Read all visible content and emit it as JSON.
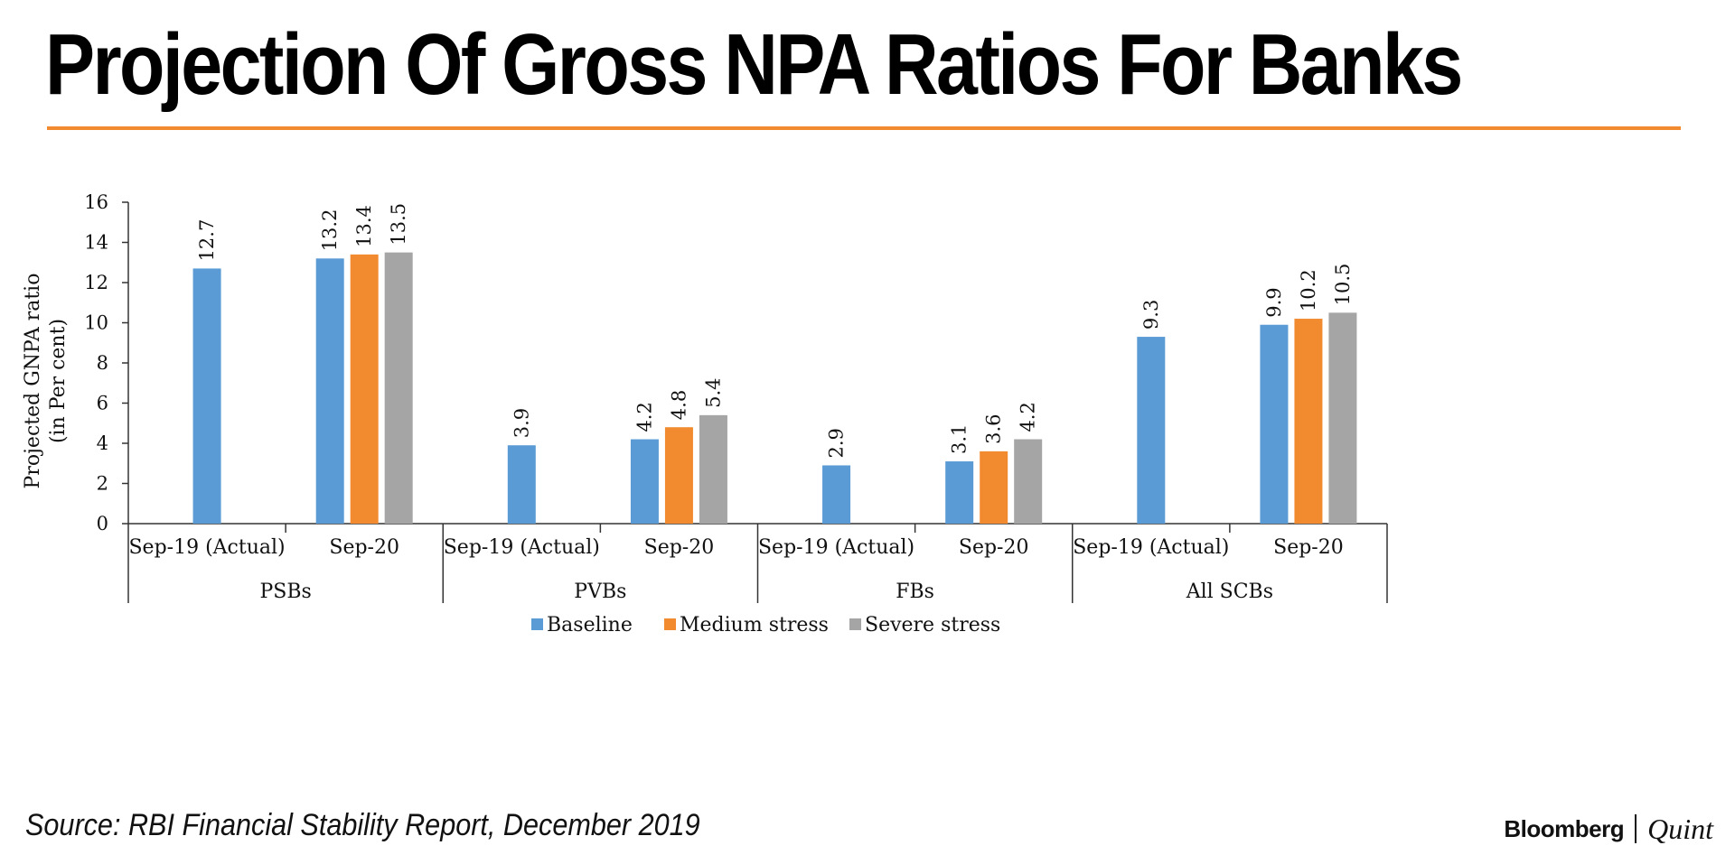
{
  "header": {
    "title": "Projection Of Gross NPA Ratios For Banks",
    "accent_color": "#f28b30"
  },
  "chart_data": {
    "type": "bar",
    "ylabel_lines": [
      "Projected GNPA ratio",
      "(in Per cent)"
    ],
    "ylim": [
      0,
      16
    ],
    "yticks": [
      0,
      2,
      4,
      6,
      8,
      10,
      12,
      14,
      16
    ],
    "grid": false,
    "legend_position": "bottom",
    "groups": [
      {
        "name": "PSBs",
        "periods": [
          {
            "label": "Sep-19 (Actual)",
            "values": {
              "Baseline": 12.7
            }
          },
          {
            "label": "Sep-20",
            "values": {
              "Baseline": 13.2,
              "Medium stress": 13.4,
              "Severe stress": 13.5
            }
          }
        ]
      },
      {
        "name": "PVBs",
        "periods": [
          {
            "label": "Sep-19 (Actual)",
            "values": {
              "Baseline": 3.9
            }
          },
          {
            "label": "Sep-20",
            "values": {
              "Baseline": 4.2,
              "Medium stress": 4.8,
              "Severe stress": 5.4
            }
          }
        ]
      },
      {
        "name": "FBs",
        "periods": [
          {
            "label": "Sep-19 (Actual)",
            "values": {
              "Baseline": 2.9
            }
          },
          {
            "label": "Sep-20",
            "values": {
              "Baseline": 3.1,
              "Medium stress": 3.6,
              "Severe stress": 4.2
            }
          }
        ]
      },
      {
        "name": "All SCBs",
        "periods": [
          {
            "label": "Sep-19 (Actual)",
            "values": {
              "Baseline": 9.3
            }
          },
          {
            "label": "Sep-20",
            "values": {
              "Baseline": 9.9,
              "Medium stress": 10.2,
              "Severe stress": 10.5
            }
          }
        ]
      }
    ],
    "series": [
      {
        "name": "Baseline",
        "color": "#5b9bd5"
      },
      {
        "name": "Medium stress",
        "color": "#f28b30"
      },
      {
        "name": "Severe stress",
        "color": "#a5a5a5"
      }
    ]
  },
  "footer": {
    "source": "Source: RBI Financial Stability Report, December 2019",
    "brand_primary": "Bloomberg",
    "brand_secondary": "Quint"
  }
}
